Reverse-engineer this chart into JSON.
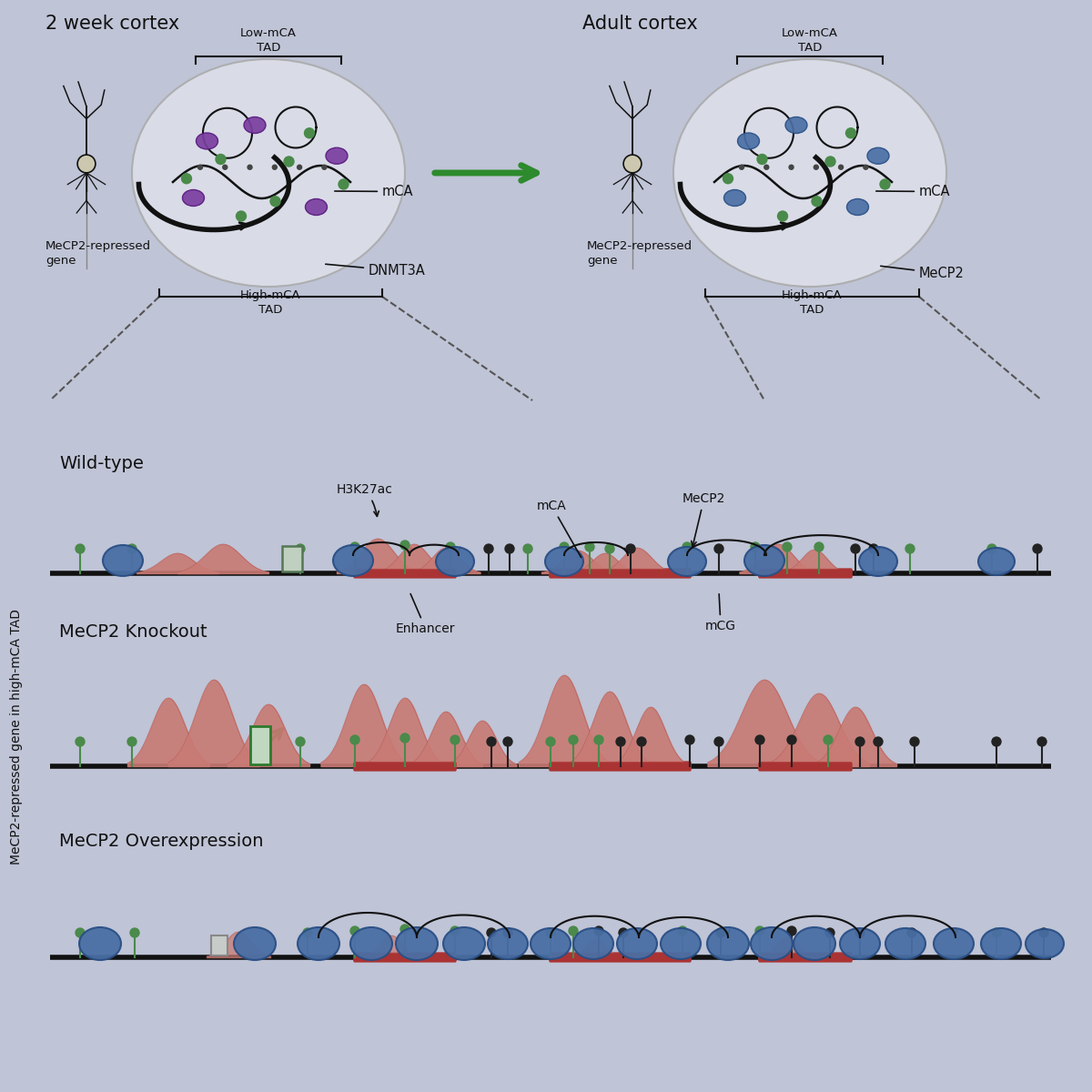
{
  "bg_color": "#bfc4d6",
  "title_2week": "2 week cortex",
  "title_adult": "Adult cortex",
  "arrow_color": "#2d8a2d",
  "nucleus_color": "#dde0ea",
  "peak_color": "#c97a74",
  "peak_edge": "#b05550",
  "enhancer_bar_color": "#aa3333",
  "mecp2_ball_color": "#4a6fa5",
  "mecp2_ball_edge": "#2a4f85",
  "dnmt3a_color": "#7a3fa0",
  "dnmt3a_edge": "#5a1a80",
  "mca_dot_color": "#4a8a4a",
  "black_dot_color": "#222222",
  "gene_arrow_color": "#2d7a2d",
  "promoter_box_color": "#7aaa7a",
  "dna_line_color": "#111111",
  "dna_thick_color": "#333333",
  "label_color": "#111111",
  "wt_label": "Wild-type",
  "ko_label": "MeCP2 Knockout",
  "oe_label": "MeCP2 Overexpression",
  "yaxis_label": "MeCP2-repressed gene in high-mCA TAD",
  "h3k27ac_label": "H3K27ac",
  "mca_label": "mCA",
  "mecp2_label": "MeCP2",
  "enhancer_label": "Enhancer",
  "mcg_label": "mCG",
  "low_mca_tad": "Low-mCA\nTAD",
  "high_mca_tad": "High-mCA\nTAD",
  "dnmt3a_label": "DNMT3A",
  "mecp2_repressed": "MeCP2-repressed\ngene"
}
